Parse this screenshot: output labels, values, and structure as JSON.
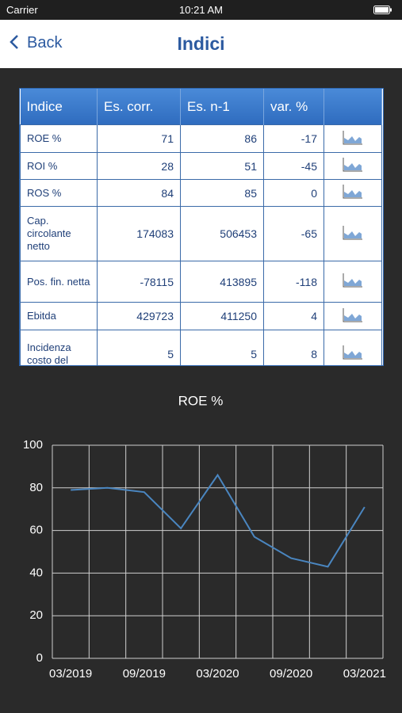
{
  "status_bar": {
    "carrier": "Carrier",
    "time": "10:21 AM"
  },
  "nav": {
    "back": "Back",
    "title": "Indici"
  },
  "table": {
    "headers": [
      "Indice",
      "Es. corr.",
      "Es. n-1",
      "var. %"
    ],
    "rows": [
      [
        "ROE %",
        71,
        86,
        -17
      ],
      [
        "ROI %",
        28,
        51,
        -45
      ],
      [
        "ROS %",
        84,
        85,
        0
      ],
      [
        "Cap. circolante netto",
        174083,
        506453,
        -65
      ],
      [
        "Pos. fin. netta",
        -78115,
        413895,
        -118
      ],
      [
        "Ebitda",
        429723,
        411250,
        4
      ],
      [
        "Incidenza costo del",
        5,
        5,
        8
      ]
    ]
  },
  "chart_data": {
    "type": "line",
    "title": "ROE %",
    "categories": [
      "03/2019",
      null,
      "09/2019",
      null,
      "03/2020",
      null,
      "09/2020",
      null,
      "03/2021"
    ],
    "series": [
      {
        "color": "#4a86c0",
        "values": [
          79,
          80,
          78,
          61,
          86,
          57,
          47,
          43,
          71
        ]
      }
    ],
    "ylim": [
      0,
      100
    ],
    "yticks": [
      0,
      20,
      40,
      60,
      80,
      100
    ],
    "grid": true
  }
}
